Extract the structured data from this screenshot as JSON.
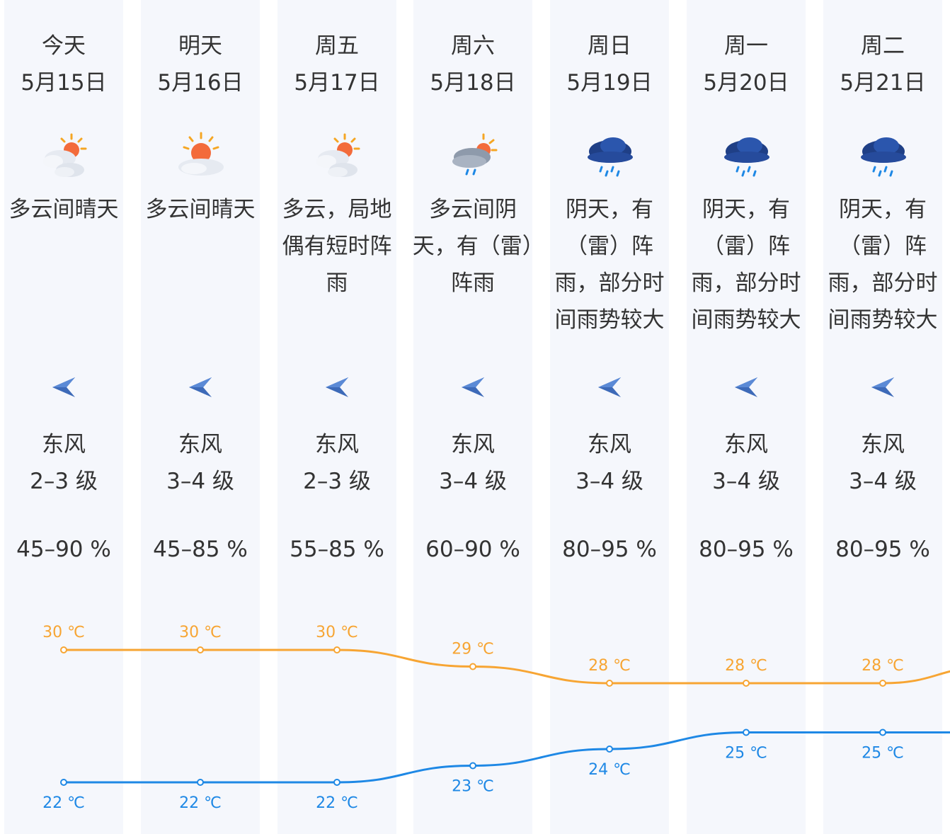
{
  "forecast": {
    "days": [
      {
        "day": "今天",
        "date": "5月15日",
        "weather": "多云间晴天",
        "icon": "partly-sunny-icon",
        "wind_dir": "东风",
        "wind_level": "2–3 级",
        "humidity": "45–90 %",
        "high": "30 ℃",
        "low": "22 ℃"
      },
      {
        "day": "明天",
        "date": "5月16日",
        "weather": "多云间晴天",
        "icon": "sun-cloud-icon",
        "wind_dir": "东风",
        "wind_level": "3–4 级",
        "humidity": "45–85 %",
        "high": "30 ℃",
        "low": "22 ℃"
      },
      {
        "day": "周五",
        "date": "5月17日",
        "weather": "多云，局地偶有短时阵雨",
        "icon": "partly-sunny-icon",
        "wind_dir": "东风",
        "wind_level": "2–3 级",
        "humidity": "55–85 %",
        "high": "30 ℃",
        "low": "22 ℃"
      },
      {
        "day": "周六",
        "date": "5月18日",
        "weather": "多云间阴天，有（雷）阵雨",
        "icon": "cloud-sun-rain-icon",
        "wind_dir": "东风",
        "wind_level": "3–4 级",
        "humidity": "60–90 %",
        "high": "29 ℃",
        "low": "23 ℃"
      },
      {
        "day": "周日",
        "date": "5月19日",
        "weather": "阴天，有（雷）阵雨，部分时间雨势较大",
        "icon": "dark-rain-cloud-icon",
        "wind_dir": "东风",
        "wind_level": "3–4 级",
        "humidity": "80–95 %",
        "high": "28 ℃",
        "low": "24 ℃"
      },
      {
        "day": "周一",
        "date": "5月20日",
        "weather": "阴天，有（雷）阵雨，部分时间雨势较大",
        "icon": "dark-rain-cloud-icon",
        "wind_dir": "东风",
        "wind_level": "3–4 级",
        "humidity": "80–95 %",
        "high": "28 ℃",
        "low": "25 ℃"
      },
      {
        "day": "周二",
        "date": "5月21日",
        "weather": "阴天，有（雷）阵雨，部分时间雨势较大",
        "icon": "dark-rain-cloud-icon",
        "wind_dir": "东风",
        "wind_level": "3–4 级",
        "humidity": "80–95 %",
        "high": "28 ℃",
        "low": "25 ℃"
      }
    ]
  },
  "chart_data": {
    "type": "line",
    "categories": [
      "今天",
      "明天",
      "周五",
      "周六",
      "周日",
      "周一",
      "周二"
    ],
    "series": [
      {
        "values": [
          30,
          30,
          30,
          29,
          28,
          28,
          28
        ],
        "color": "#f7a533"
      },
      {
        "values": [
          22,
          22,
          22,
          23,
          24,
          25,
          25
        ],
        "color": "#1e88e5"
      }
    ],
    "unit": "℃",
    "trailing_high": 29
  },
  "colors": {
    "column_bg": "#f5f7fc",
    "high_line": "#f7a533",
    "low_line": "#1e88e5",
    "wind_arrow": "#3d6ab8"
  }
}
